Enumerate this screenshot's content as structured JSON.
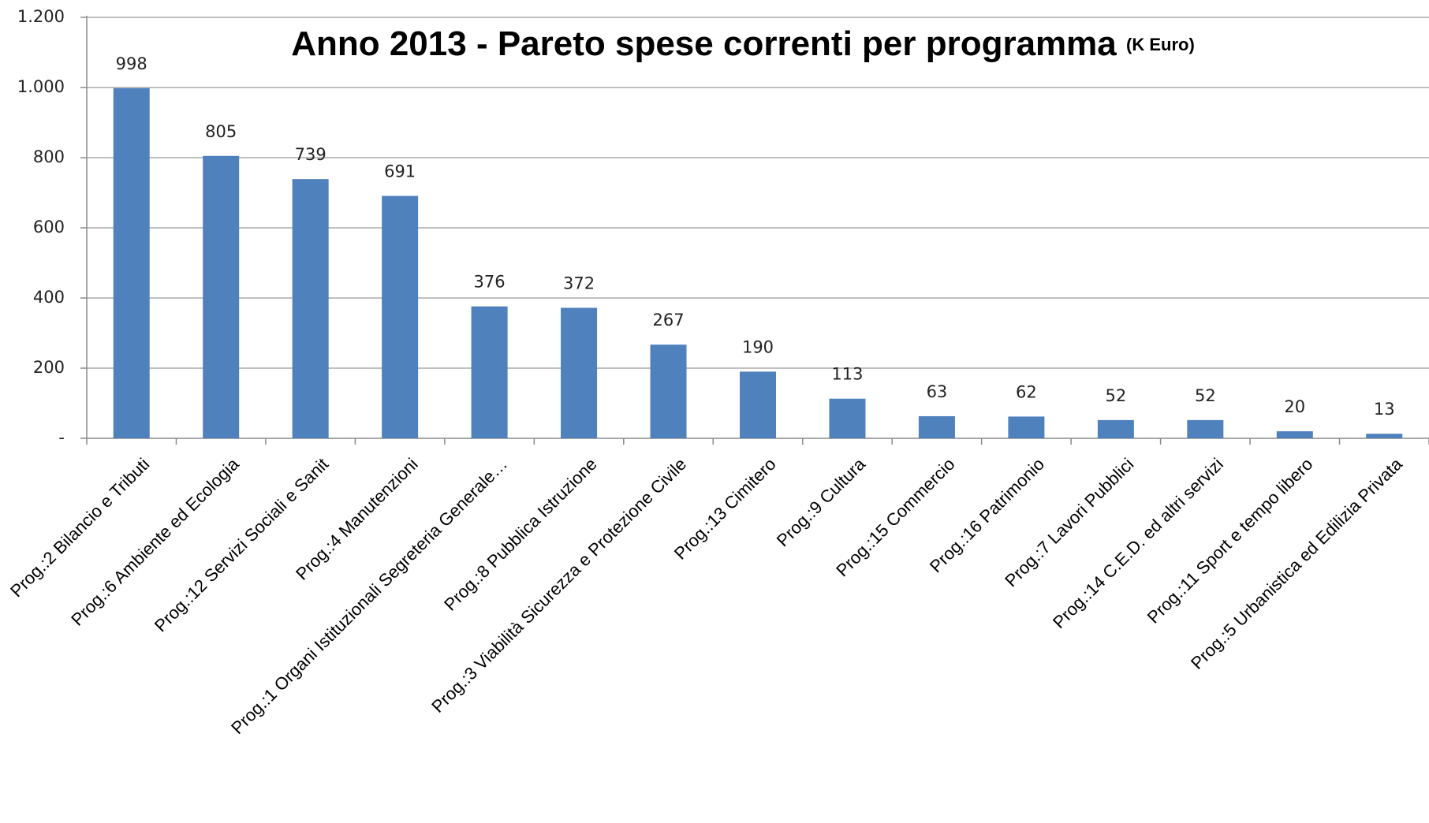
{
  "chart_data": {
    "type": "bar",
    "title": "Anno 2013 - Pareto spese correnti per programma",
    "title_unit": "(K Euro)",
    "categories": [
      "Prog.:2 Bilancio e Tributi",
      "Prog.:6 Ambiente ed Ecologia",
      "Prog.:12 Servizi Sociali e Sanit",
      "Prog.:4 Manutenzioni",
      "Prog.:1 Organi Istituzionali Segreteria Generale…",
      "Prog.:8 Pubblica Istruzione",
      "Prog.:3 Viabilità Sicurezza e Protezione Civile",
      "Prog.:13 Cimitero",
      "Prog.:9 Cultura",
      "Prog.:15 Commercio",
      "Prog.:16 Patrimonio",
      "Prog.:7 Lavori Pubblici",
      "Prog.:14 C.E.D. ed altri servizi",
      "Prog.:11 Sport e tempo libero",
      "Prog.:5 Urbanistica ed Edilizia Privata"
    ],
    "values": [
      998,
      805,
      739,
      691,
      376,
      372,
      267,
      190,
      113,
      63,
      62,
      52,
      52,
      20,
      13
    ],
    "color": "#4f81bd",
    "ylim": [
      0,
      1200
    ],
    "yticks": [
      {
        "value": 0,
        "label": "-"
      },
      200,
      400,
      600,
      800,
      {
        "value": 1000,
        "label": "1.000"
      },
      {
        "value": 1200,
        "label": "1.200"
      }
    ],
    "grid": true
  }
}
